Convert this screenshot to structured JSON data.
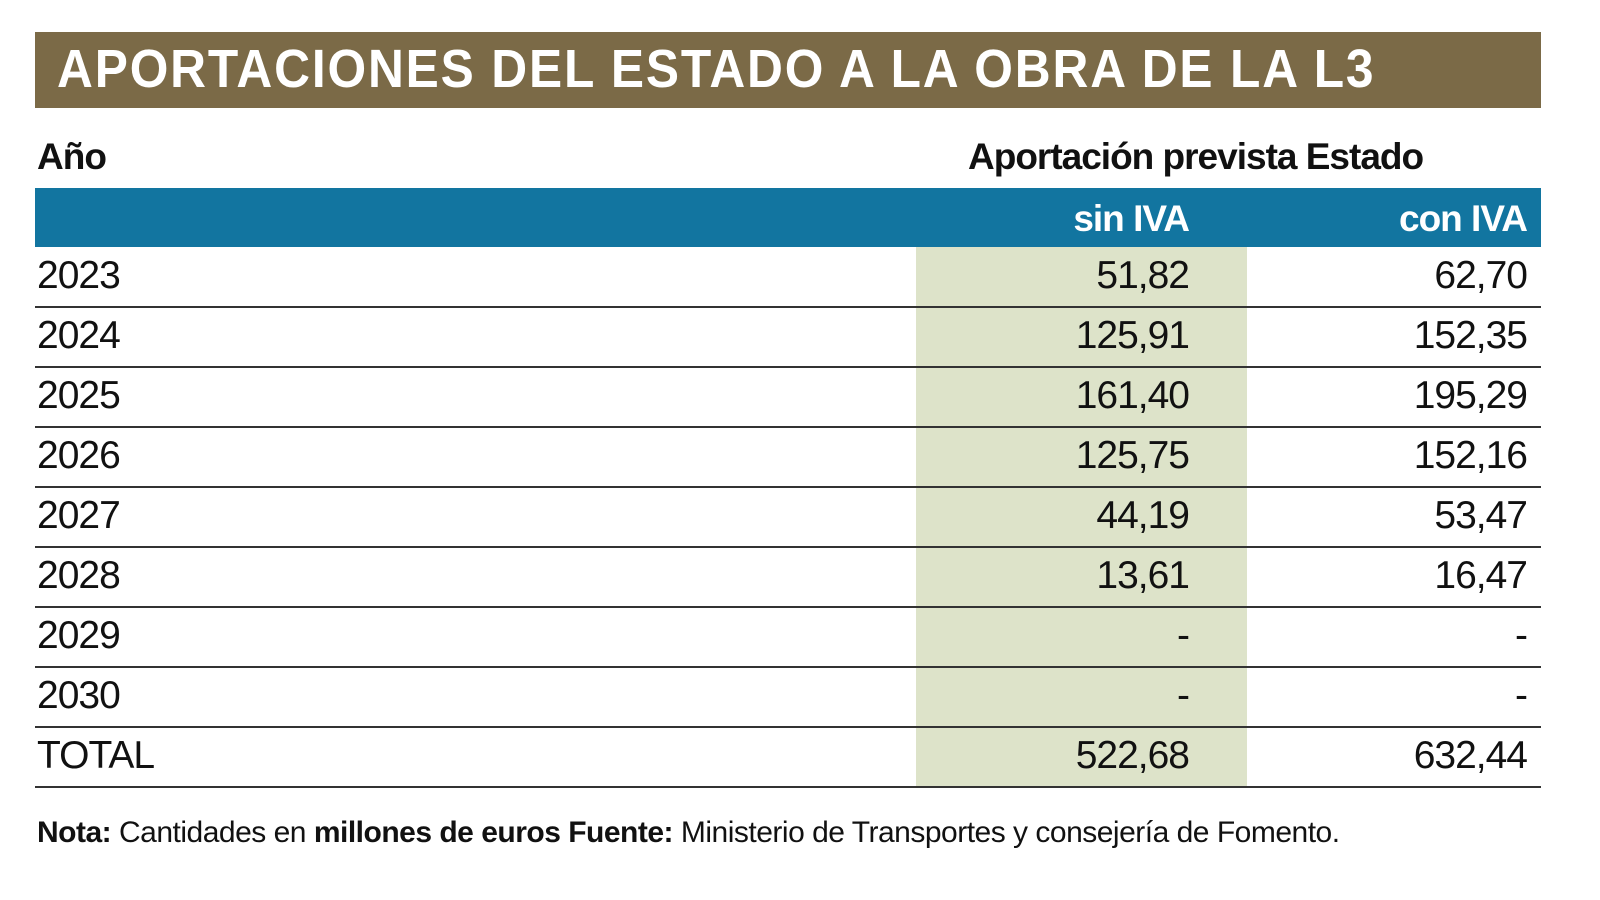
{
  "title": "APORTACIONES DEL ESTADO A LA OBRA DE LA L3",
  "colors": {
    "title_bar": "#7b6a47",
    "header_bar": "#1275a0",
    "highlight_column": "#dde3c9"
  },
  "chart_data": {
    "type": "table",
    "title": "APORTACIONES DEL ESTADO A LA OBRA DE LA L3",
    "row_header": "Año",
    "group_header": "Aportación prevista Estado",
    "columns": [
      "sin IVA",
      "con IVA"
    ],
    "rows": [
      {
        "year": "2023",
        "sin_iva": "51,82",
        "con_iva": "62,70"
      },
      {
        "year": "2024",
        "sin_iva": "125,91",
        "con_iva": "152,35"
      },
      {
        "year": "2025",
        "sin_iva": "161,40",
        "con_iva": "195,29"
      },
      {
        "year": "2026",
        "sin_iva": "125,75",
        "con_iva": "152,16"
      },
      {
        "year": "2027",
        "sin_iva": "44,19",
        "con_iva": "53,47"
      },
      {
        "year": "2028",
        "sin_iva": "13,61",
        "con_iva": "16,47"
      },
      {
        "year": "2029",
        "sin_iva": "-",
        "con_iva": "-"
      },
      {
        "year": "2030",
        "sin_iva": "-",
        "con_iva": "-"
      },
      {
        "year": "TOTAL",
        "sin_iva": "522,68",
        "con_iva": "632,44"
      }
    ]
  },
  "note": {
    "label": "Nota:",
    "text1": " Cantidades en ",
    "bold1": "millones de euros",
    "source_label": " Fuente:",
    "source": " Ministerio de Transportes y consejería de Fomento."
  }
}
